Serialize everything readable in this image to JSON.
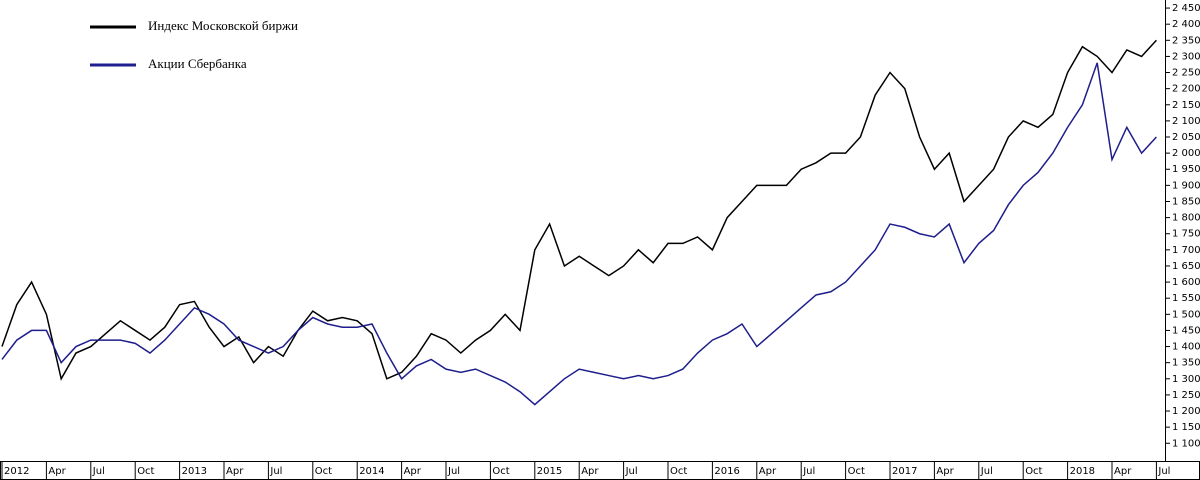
{
  "chart_data": {
    "type": "line",
    "x": [
      "2012-01",
      "2012-02",
      "2012-03",
      "2012-04",
      "2012-05",
      "2012-06",
      "2012-07",
      "2012-08",
      "2012-09",
      "2012-10",
      "2012-11",
      "2012-12",
      "2013-01",
      "2013-02",
      "2013-03",
      "2013-04",
      "2013-05",
      "2013-06",
      "2013-07",
      "2013-08",
      "2013-09",
      "2013-10",
      "2013-11",
      "2013-12",
      "2014-01",
      "2014-02",
      "2014-03",
      "2014-04",
      "2014-05",
      "2014-06",
      "2014-07",
      "2014-08",
      "2014-09",
      "2014-10",
      "2014-11",
      "2014-12",
      "2015-01",
      "2015-02",
      "2015-03",
      "2015-04",
      "2015-05",
      "2015-06",
      "2015-07",
      "2015-08",
      "2015-09",
      "2015-10",
      "2015-11",
      "2015-12",
      "2016-01",
      "2016-02",
      "2016-03",
      "2016-04",
      "2016-05",
      "2016-06",
      "2016-07",
      "2016-08",
      "2016-09",
      "2016-10",
      "2016-11",
      "2016-12",
      "2017-01",
      "2017-02",
      "2017-03",
      "2017-04",
      "2017-05",
      "2017-06",
      "2017-07",
      "2017-08",
      "2017-09",
      "2017-10",
      "2017-11",
      "2017-12",
      "2018-01",
      "2018-02",
      "2018-03",
      "2018-04",
      "2018-05",
      "2018-06",
      "2018-07"
    ],
    "series": [
      {
        "name": "Индекс Московской биржи",
        "color": "#000000",
        "values": [
          1400,
          1530,
          1600,
          1500,
          1300,
          1380,
          1400,
          1440,
          1480,
          1450,
          1420,
          1460,
          1530,
          1540,
          1460,
          1400,
          1430,
          1350,
          1400,
          1370,
          1450,
          1510,
          1480,
          1490,
          1480,
          1440,
          1300,
          1320,
          1370,
          1440,
          1420,
          1380,
          1420,
          1450,
          1500,
          1450,
          1700,
          1780,
          1650,
          1680,
          1650,
          1620,
          1650,
          1700,
          1660,
          1720,
          1720,
          1740,
          1700,
          1800,
          1850,
          1900,
          1900,
          1900,
          1950,
          1970,
          2000,
          2000,
          2050,
          2180,
          2250,
          2200,
          2050,
          1950,
          2000,
          1850,
          1900,
          1950,
          2050,
          2100,
          2080,
          2120,
          2250,
          2330,
          2300,
          2250,
          2320,
          2300,
          2350
        ]
      },
      {
        "name": "Акции Сбербанка",
        "color": "#1e1e8c",
        "values": [
          1360,
          1420,
          1450,
          1450,
          1350,
          1400,
          1420,
          1420,
          1420,
          1410,
          1380,
          1420,
          1470,
          1520,
          1500,
          1470,
          1420,
          1400,
          1380,
          1400,
          1450,
          1490,
          1470,
          1460,
          1460,
          1470,
          1380,
          1300,
          1340,
          1360,
          1330,
          1320,
          1330,
          1310,
          1290,
          1260,
          1220,
          1260,
          1300,
          1330,
          1320,
          1310,
          1300,
          1310,
          1300,
          1310,
          1330,
          1380,
          1420,
          1440,
          1470,
          1400,
          1440,
          1480,
          1520,
          1560,
          1570,
          1600,
          1650,
          1700,
          1780,
          1770,
          1750,
          1740,
          1780,
          1660,
          1720,
          1760,
          1840,
          1900,
          1940,
          2000,
          2080,
          2150,
          2280,
          1980,
          2080,
          2000,
          2050
        ]
      }
    ],
    "ylim": [
      1045,
      2475
    ],
    "yticks": [
      {
        "value": 1100,
        "label": "1 100"
      },
      {
        "value": 1150,
        "label": "1 150"
      },
      {
        "value": 1200,
        "label": "1 200"
      },
      {
        "value": 1250,
        "label": "1 250"
      },
      {
        "value": 1300,
        "label": "1 300"
      },
      {
        "value": 1350,
        "label": "1 350"
      },
      {
        "value": 1400,
        "label": "1 400"
      },
      {
        "value": 1450,
        "label": "1 450"
      },
      {
        "value": 1500,
        "label": "1 500"
      },
      {
        "value": 1550,
        "label": "1 550"
      },
      {
        "value": 1600,
        "label": "1 600"
      },
      {
        "value": 1650,
        "label": "1 650"
      },
      {
        "value": 1700,
        "label": "1 700"
      },
      {
        "value": 1750,
        "label": "1 750"
      },
      {
        "value": 1800,
        "label": "1 800"
      },
      {
        "value": 1850,
        "label": "1 850"
      },
      {
        "value": 1900,
        "label": "1 900"
      },
      {
        "value": 1950,
        "label": "1 950"
      },
      {
        "value": 2000,
        "label": "2 000"
      },
      {
        "value": 2050,
        "label": "2 050"
      },
      {
        "value": 2100,
        "label": "2 100"
      },
      {
        "value": 2150,
        "label": "2 150"
      },
      {
        "value": 2200,
        "label": "2 200"
      },
      {
        "value": 2250,
        "label": "2 250"
      },
      {
        "value": 2300,
        "label": "2 300"
      },
      {
        "value": 2350,
        "label": "2 350"
      },
      {
        "value": 2400,
        "label": "2 400"
      },
      {
        "value": 2450,
        "label": "2 450"
      }
    ],
    "xticks": [
      {
        "value": "2012-01",
        "label": "2012"
      },
      {
        "value": "2012-04",
        "label": "Apr"
      },
      {
        "value": "2012-07",
        "label": "Jul"
      },
      {
        "value": "2012-10",
        "label": "Oct"
      },
      {
        "value": "2013-01",
        "label": "2013"
      },
      {
        "value": "2013-04",
        "label": "Apr"
      },
      {
        "value": "2013-07",
        "label": "Jul"
      },
      {
        "value": "2013-10",
        "label": "Oct"
      },
      {
        "value": "2014-01",
        "label": "2014"
      },
      {
        "value": "2014-04",
        "label": "Apr"
      },
      {
        "value": "2014-07",
        "label": "Jul"
      },
      {
        "value": "2014-10",
        "label": "Oct"
      },
      {
        "value": "2015-01",
        "label": "2015"
      },
      {
        "value": "2015-04",
        "label": "Apr"
      },
      {
        "value": "2015-07",
        "label": "Jul"
      },
      {
        "value": "2015-10",
        "label": "Oct"
      },
      {
        "value": "2016-01",
        "label": "2016"
      },
      {
        "value": "2016-04",
        "label": "Apr"
      },
      {
        "value": "2016-07",
        "label": "Jul"
      },
      {
        "value": "2016-10",
        "label": "Oct"
      },
      {
        "value": "2017-01",
        "label": "2017"
      },
      {
        "value": "2017-04",
        "label": "Apr"
      },
      {
        "value": "2017-07",
        "label": "Jul"
      },
      {
        "value": "2017-10",
        "label": "Oct"
      },
      {
        "value": "2018-01",
        "label": "2018"
      },
      {
        "value": "2018-04",
        "label": "Apr"
      },
      {
        "value": "2018-07",
        "label": "Jul"
      }
    ]
  }
}
